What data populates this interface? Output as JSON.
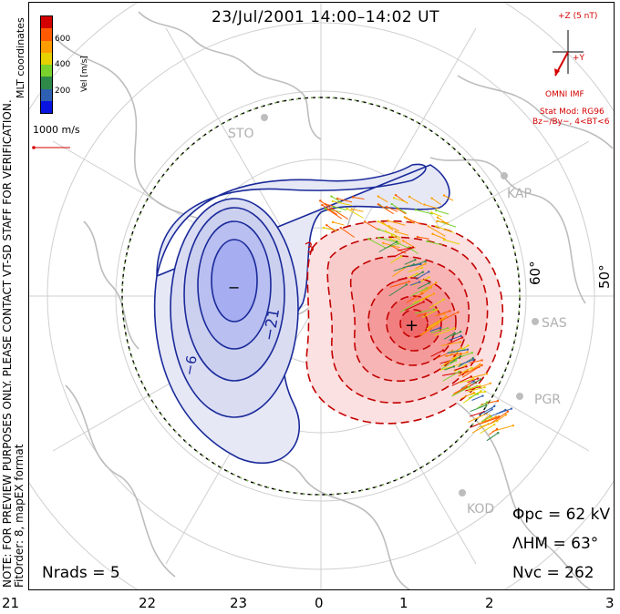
{
  "title": "23/Jul/2001 14:00–14:02 UT",
  "side_text": {
    "line1": "NOTE: FOR PREVIEW PURPOSES ONLY. PLEASE CONTACT VT-SD STAFF FOR VERIFICATION.",
    "line2": "FitOrder: 8, mapEX format",
    "top": "MLT coordinates"
  },
  "colorbar": {
    "label": "Vel [m/s]",
    "ticks": [
      "600",
      "400",
      "200"
    ],
    "colors": [
      "#d40000",
      "#ff5a00",
      "#ff9d00",
      "#e6d000",
      "#7ad12b",
      "#2f8a4a",
      "#2f5fb0",
      "#0a14e0"
    ]
  },
  "scale_vector": {
    "label": "1000 m/s"
  },
  "imf": {
    "header": "+Z (5 nT)",
    "y_label": "+Y",
    "source": "OMNI IMF",
    "stat_mod": "Stat Mod: RG96",
    "cond": "Bz−/By−, 4<BT<6"
  },
  "stations": [
    "STO",
    "KAP",
    "SAS",
    "PGR",
    "KOD"
  ],
  "lat_labels": [
    "60°",
    "50°"
  ],
  "hour_labels": [
    "21",
    "22",
    "23",
    "0",
    "1",
    "2",
    "3"
  ],
  "contour_labels": [
    "−6",
    "−21",
    "−",
    "+",
    "3"
  ],
  "stats": {
    "phi_pc_label": "Φpc",
    "phi_pc_value": "= 62 kV",
    "lambda_label": "ΛHM",
    "lambda_value": "= 63°",
    "nvc_label": "Nvc",
    "nvc_value": "= 262",
    "nrads_label": "Nrads",
    "nrads_value": "= 5"
  }
}
